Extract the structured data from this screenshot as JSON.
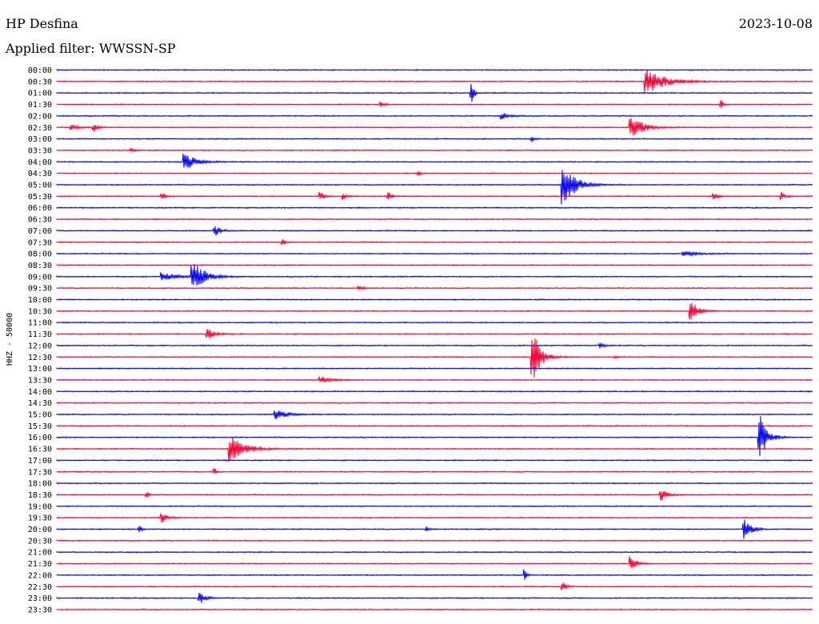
{
  "header": {
    "station": "HP Desfina",
    "date": "2023-10-08",
    "filter_label": "Applied filter:",
    "filter_value": "WWSSN-SP"
  },
  "chart_data": {
    "type": "line",
    "ylabel": "HHZ - 50000",
    "colors": [
      "#0000ee",
      "#ee0033"
    ],
    "rows": [
      {
        "label": "00:00",
        "events": []
      },
      {
        "label": "00:30",
        "events": [
          {
            "t": 0.78,
            "a": 16,
            "d": 0.05
          }
        ]
      },
      {
        "label": "01:00",
        "events": [
          {
            "t": 0.55,
            "a": 14,
            "d": 0.005
          }
        ]
      },
      {
        "label": "01:30",
        "events": [
          {
            "t": 0.88,
            "a": 5,
            "d": 0.005
          },
          {
            "t": 0.43,
            "a": 3,
            "d": 0.01
          }
        ]
      },
      {
        "label": "02:00",
        "events": [
          {
            "t": 0.59,
            "a": 4,
            "d": 0.02
          }
        ]
      },
      {
        "label": "02:30",
        "events": [
          {
            "t": 0.76,
            "a": 16,
            "d": 0.03
          },
          {
            "t": 0.05,
            "a": 6,
            "d": 0.01
          },
          {
            "t": 0.02,
            "a": 3,
            "d": 0.02
          }
        ]
      },
      {
        "label": "03:00",
        "events": [
          {
            "t": 0.63,
            "a": 3,
            "d": 0.005
          }
        ]
      },
      {
        "label": "03:30",
        "events": [
          {
            "t": 0.1,
            "a": 2,
            "d": 0.01
          }
        ]
      },
      {
        "label": "04:00",
        "events": [
          {
            "t": 0.17,
            "a": 10,
            "d": 0.03
          }
        ]
      },
      {
        "label": "04:30",
        "events": [
          {
            "t": 0.48,
            "a": 3,
            "d": 0.005
          }
        ]
      },
      {
        "label": "05:00",
        "events": [
          {
            "t": 0.67,
            "a": 30,
            "d": 0.03
          }
        ]
      },
      {
        "label": "05:30",
        "events": [
          {
            "t": 0.14,
            "a": 5,
            "d": 0.01
          },
          {
            "t": 0.35,
            "a": 5,
            "d": 0.01
          },
          {
            "t": 0.38,
            "a": 4,
            "d": 0.01
          },
          {
            "t": 0.44,
            "a": 5,
            "d": 0.01
          },
          {
            "t": 0.87,
            "a": 4,
            "d": 0.01
          },
          {
            "t": 0.96,
            "a": 5,
            "d": 0.01
          }
        ]
      },
      {
        "label": "06:00",
        "events": []
      },
      {
        "label": "06:30",
        "events": []
      },
      {
        "label": "07:00",
        "events": [
          {
            "t": 0.21,
            "a": 6,
            "d": 0.015
          }
        ]
      },
      {
        "label": "07:30",
        "events": [
          {
            "t": 0.3,
            "a": 4,
            "d": 0.005
          }
        ]
      },
      {
        "label": "08:00",
        "events": [
          {
            "t": 0.83,
            "a": 3,
            "d": 0.04
          }
        ]
      },
      {
        "label": "08:30",
        "events": []
      },
      {
        "label": "09:00",
        "events": [
          {
            "t": 0.18,
            "a": 20,
            "d": 0.03
          },
          {
            "t": 0.14,
            "a": 5,
            "d": 0.04
          }
        ]
      },
      {
        "label": "09:30",
        "events": [
          {
            "t": 0.4,
            "a": 4,
            "d": 0.01
          }
        ]
      },
      {
        "label": "10:00",
        "events": []
      },
      {
        "label": "10:30",
        "events": [
          {
            "t": 0.84,
            "a": 12,
            "d": 0.02
          }
        ]
      },
      {
        "label": "11:00",
        "events": []
      },
      {
        "label": "11:30",
        "events": [
          {
            "t": 0.2,
            "a": 6,
            "d": 0.02
          }
        ]
      },
      {
        "label": "12:00",
        "events": [
          {
            "t": 0.72,
            "a": 4,
            "d": 0.01
          }
        ]
      },
      {
        "label": "12:30",
        "events": [
          {
            "t": 0.63,
            "a": 40,
            "d": 0.02
          },
          {
            "t": 0.74,
            "a": 2,
            "d": 0.005
          }
        ]
      },
      {
        "label": "13:00",
        "events": []
      },
      {
        "label": "13:30",
        "events": [
          {
            "t": 0.35,
            "a": 4,
            "d": 0.03
          }
        ]
      },
      {
        "label": "14:00",
        "events": []
      },
      {
        "label": "14:30",
        "events": []
      },
      {
        "label": "15:00",
        "events": [
          {
            "t": 0.29,
            "a": 6,
            "d": 0.03
          }
        ]
      },
      {
        "label": "15:30",
        "events": []
      },
      {
        "label": "16:00",
        "events": [
          {
            "t": 0.93,
            "a": 30,
            "d": 0.02
          }
        ]
      },
      {
        "label": "16:30",
        "events": [
          {
            "t": 0.23,
            "a": 16,
            "d": 0.04
          }
        ]
      },
      {
        "label": "17:00",
        "events": []
      },
      {
        "label": "17:30",
        "events": [
          {
            "t": 0.21,
            "a": 4,
            "d": 0.005
          }
        ]
      },
      {
        "label": "18:00",
        "events": []
      },
      {
        "label": "18:30",
        "events": [
          {
            "t": 0.8,
            "a": 8,
            "d": 0.015
          },
          {
            "t": 0.12,
            "a": 3,
            "d": 0.005
          }
        ]
      },
      {
        "label": "19:00",
        "events": []
      },
      {
        "label": "19:30",
        "events": [
          {
            "t": 0.14,
            "a": 6,
            "d": 0.015
          }
        ]
      },
      {
        "label": "20:00",
        "events": [
          {
            "t": 0.91,
            "a": 12,
            "d": 0.02
          },
          {
            "t": 0.11,
            "a": 4,
            "d": 0.005
          },
          {
            "t": 0.49,
            "a": 3,
            "d": 0.005
          }
        ]
      },
      {
        "label": "20:30",
        "events": []
      },
      {
        "label": "21:00",
        "events": []
      },
      {
        "label": "21:30",
        "events": [
          {
            "t": 0.76,
            "a": 10,
            "d": 0.015
          }
        ]
      },
      {
        "label": "22:00",
        "events": [
          {
            "t": 0.62,
            "a": 7,
            "d": 0.005
          }
        ]
      },
      {
        "label": "22:30",
        "events": [
          {
            "t": 0.67,
            "a": 6,
            "d": 0.01
          }
        ]
      },
      {
        "label": "23:00",
        "events": [
          {
            "t": 0.19,
            "a": 7,
            "d": 0.015
          }
        ]
      },
      {
        "label": "23:30",
        "events": []
      }
    ]
  }
}
